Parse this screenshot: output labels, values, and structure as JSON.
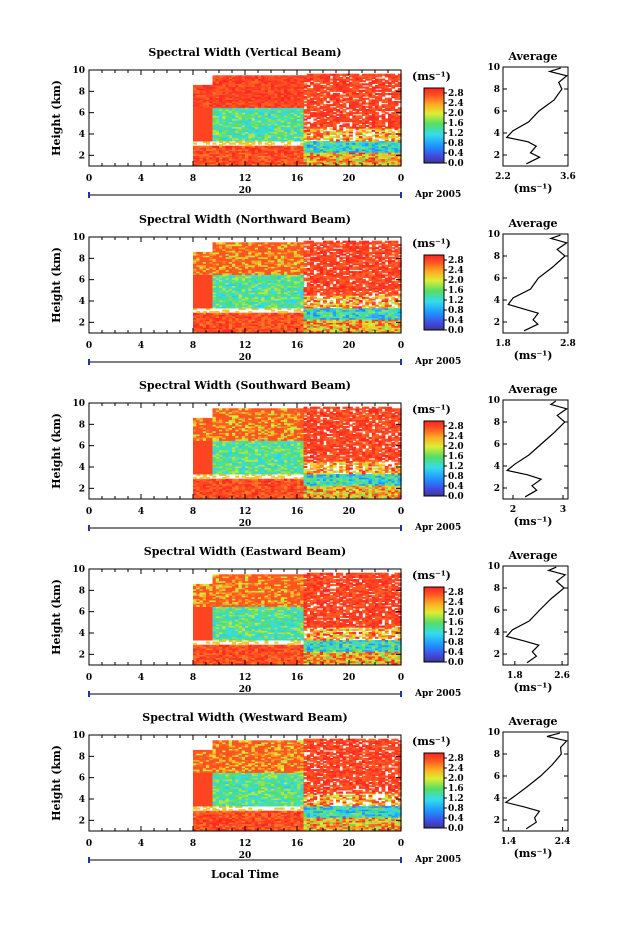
{
  "chart_data": {
    "type": "heatmap",
    "panels": [
      {
        "title": "Spectral Width (Vertical Beam)",
        "avg_ticks": [
          "2.2",
          "3.6"
        ],
        "avg_range": [
          2.2,
          3.6
        ]
      },
      {
        "title": "Spectral Width (Northward Beam)",
        "avg_ticks": [
          "1.8",
          "2.8"
        ],
        "avg_range": [
          1.8,
          2.8
        ]
      },
      {
        "title": "Spectral Width (Southward Beam)",
        "avg_ticks": [
          "2",
          "3"
        ],
        "avg_range": [
          1.8,
          3.1
        ]
      },
      {
        "title": "Spectral Width (Eastward Beam)",
        "avg_ticks": [
          "1.8",
          "2.6"
        ],
        "avg_range": [
          1.6,
          2.7
        ]
      },
      {
        "title": "Spectral Width (Westward Beam)",
        "avg_ticks": [
          "1.4",
          "2.4"
        ],
        "avg_range": [
          1.3,
          2.5
        ]
      }
    ],
    "ylabel": "Height (km)",
    "ylim": [
      1,
      10
    ],
    "yticks": [
      "2",
      "4",
      "6",
      "8",
      "10"
    ],
    "xlim": [
      0,
      24
    ],
    "xticks": [
      "0",
      "4",
      "8",
      "12",
      "16",
      "20",
      "0"
    ],
    "date_day": "20",
    "date_month": "Apr 2005",
    "xlabel": "Local Time",
    "colorbar_unit": "(ms⁻¹)",
    "colorbar_ticks": [
      "2.8",
      "2.4",
      "2.0",
      "1.6",
      "1.2",
      "0.8",
      "0.4",
      "0.0"
    ],
    "colorbar_range": [
      0,
      3.0
    ],
    "avg_title": "Average",
    "avg_unit": "(ms⁻¹)",
    "grid": false
  }
}
